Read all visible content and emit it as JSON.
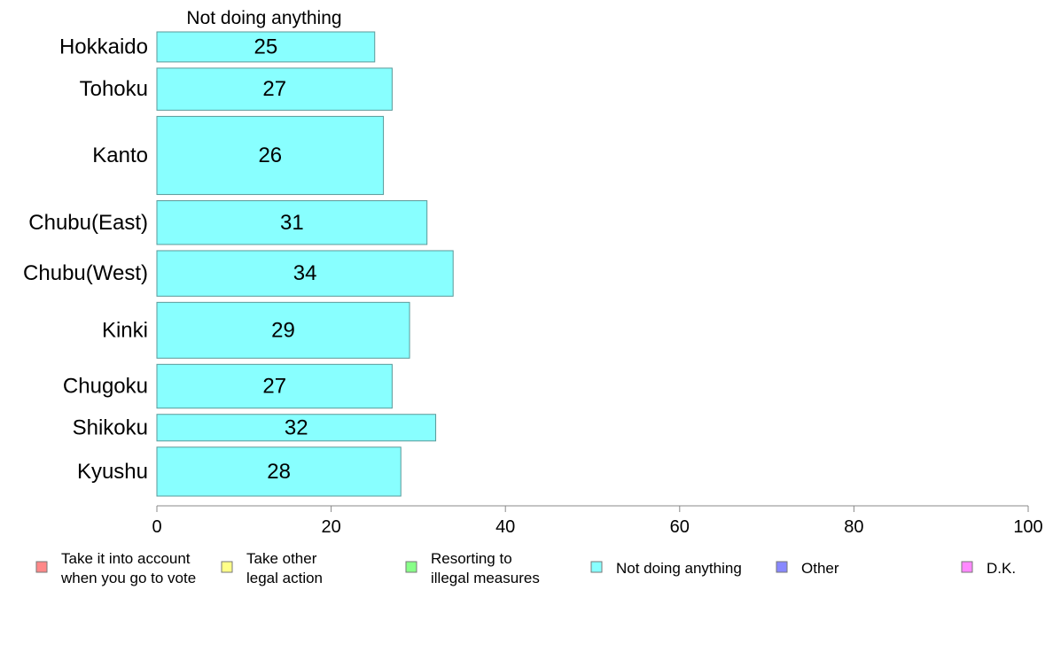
{
  "chart_data": {
    "type": "bar",
    "orientation": "horizontal",
    "series_header": "Not doing anything",
    "categories": [
      "Hokkaido",
      "Tohoku",
      "Kanto",
      "Chubu(East)",
      "Chubu(West)",
      "Kinki",
      "Chugoku",
      "Shikoku",
      "Kyushu"
    ],
    "series": [
      {
        "name": "Not doing anything",
        "color": "#88ffff",
        "values": [
          25,
          27,
          26,
          31,
          34,
          29,
          27,
          32,
          28
        ],
        "value_labels": [
          "25",
          "27",
          "26",
          "31",
          "34",
          "29",
          "27",
          "32",
          "28"
        ]
      }
    ],
    "bar_thickness_weights": [
      35,
      49,
      91,
      51,
      53,
      65,
      51,
      31,
      57
    ],
    "xlim": [
      0,
      100
    ],
    "x_ticks": [
      0,
      20,
      40,
      60,
      80,
      100
    ],
    "x_tick_labels": [
      "0",
      "20",
      "40",
      "60",
      "80",
      "100"
    ],
    "grid": false,
    "legend_placement": "bottom",
    "legend": [
      {
        "lines": [
          "Take it into account",
          "when you go to vote"
        ],
        "color": "#ff8888"
      },
      {
        "lines": [
          "Take other",
          "legal action"
        ],
        "color": "#ffff88"
      },
      {
        "lines": [
          "Resorting to",
          "illegal measures"
        ],
        "color": "#88ff88"
      },
      {
        "lines": [
          "Not doing anything"
        ],
        "color": "#88ffff"
      },
      {
        "lines": [
          "Other"
        ],
        "color": "#8888ff"
      },
      {
        "lines": [
          "D.K."
        ],
        "color": "#ff88ff"
      }
    ]
  }
}
